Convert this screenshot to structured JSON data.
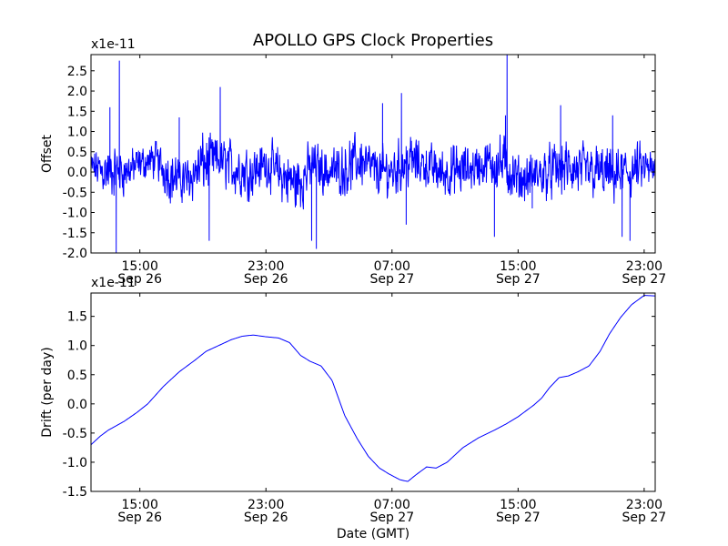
{
  "chart_data": {
    "type": "line",
    "title": "APOLLO GPS Clock Properties",
    "line_color": "#0000ff",
    "x_ticks": [
      {
        "hour": 15,
        "time": "15:00",
        "date": "Sep 26"
      },
      {
        "hour": 23,
        "time": "23:00",
        "date": "Sep 26"
      },
      {
        "hour": 31,
        "time": "07:00",
        "date": "Sep 27"
      },
      {
        "hour": 39,
        "time": "15:00",
        "date": "Sep 27"
      },
      {
        "hour": 47,
        "time": "23:00",
        "date": "Sep 27"
      }
    ],
    "xlim_hours": [
      11.9,
      47.7
    ],
    "panels": [
      {
        "name": "offset",
        "ylabel": "Offset",
        "scale_label": "x1e-11",
        "ylim": [
          -2.0,
          2.9
        ],
        "yticks": [
          -2.0,
          -1.5,
          -1.0,
          -0.5,
          0.0,
          0.5,
          1.0,
          1.5,
          2.0,
          2.5
        ],
        "ytick_labels": [
          "-2.0",
          "-1.5",
          "-1.0",
          "-0.5",
          "0.0",
          "0.5",
          "1.0",
          "1.5",
          "2.0",
          "2.5"
        ],
        "xlabel": "",
        "series": {
          "name": "offset",
          "envelope_hours": [
            12,
            13,
            14,
            15,
            16,
            17,
            18,
            19,
            20,
            21,
            22,
            23,
            24,
            25,
            26,
            27,
            28,
            29,
            30,
            31,
            32,
            33,
            34,
            35,
            36,
            37,
            38,
            39,
            40,
            41,
            42,
            43,
            44,
            45,
            46,
            47,
            47.7
          ],
          "envelope_center": [
            0.1,
            0.0,
            0.0,
            0.2,
            0.3,
            -0.1,
            -0.2,
            0.2,
            0.3,
            0.1,
            0.0,
            0.2,
            -0.1,
            -0.3,
            0.2,
            0.0,
            0.1,
            0.3,
            0.0,
            0.0,
            0.3,
            0.2,
            0.0,
            0.0,
            0.1,
            0.2,
            0.2,
            -0.2,
            -0.1,
            0.0,
            0.1,
            0.0,
            0.0,
            -0.1,
            0.0,
            0.1,
            0.0
          ],
          "envelope_amplitude": [
            0.4,
            0.6,
            0.5,
            0.4,
            0.4,
            0.6,
            0.5,
            0.7,
            0.5,
            0.6,
            0.6,
            0.5,
            0.6,
            0.7,
            0.5,
            0.5,
            0.6,
            0.6,
            0.5,
            0.6,
            0.6,
            0.5,
            0.5,
            0.6,
            0.5,
            0.5,
            0.7,
            0.5,
            0.5,
            0.6,
            0.6,
            0.6,
            0.6,
            0.6,
            0.6,
            0.5,
            0.4
          ],
          "spikes": [
            {
              "hour": 13.1,
              "value": 1.6
            },
            {
              "hour": 13.7,
              "value": 2.75
            },
            {
              "hour": 13.5,
              "value": -2.0
            },
            {
              "hour": 17.5,
              "value": 1.35
            },
            {
              "hour": 19.4,
              "value": -1.7
            },
            {
              "hour": 20.1,
              "value": 2.1
            },
            {
              "hour": 26.2,
              "value": -1.9
            },
            {
              "hour": 25.9,
              "value": -1.7
            },
            {
              "hour": 30.4,
              "value": 1.7
            },
            {
              "hour": 31.6,
              "value": 1.95
            },
            {
              "hour": 31.9,
              "value": -1.3
            },
            {
              "hour": 37.5,
              "value": -1.6
            },
            {
              "hour": 38.3,
              "value": 2.9
            },
            {
              "hour": 38.2,
              "value": 1.4
            },
            {
              "hour": 39.9,
              "value": -0.9
            },
            {
              "hour": 41.7,
              "value": 1.65
            },
            {
              "hour": 45.0,
              "value": 1.4
            },
            {
              "hour": 46.1,
              "value": -1.7
            },
            {
              "hour": 45.6,
              "value": -1.6
            }
          ]
        }
      },
      {
        "name": "drift",
        "ylabel": "Drift (per day)",
        "scale_label": "x1e-11",
        "ylim": [
          -1.5,
          1.9
        ],
        "yticks": [
          -1.5,
          -1.0,
          -0.5,
          0.0,
          0.5,
          1.0,
          1.5
        ],
        "ytick_labels": [
          "-1.5",
          "-1.0",
          "-0.5",
          "0.0",
          "0.5",
          "1.0",
          "1.5"
        ],
        "xlabel": "Date (GMT)",
        "series": {
          "name": "drift",
          "x_hours": [
            11.9,
            12.5,
            13.0,
            14.0,
            14.8,
            15.5,
            16.5,
            17.5,
            18.5,
            19.2,
            20.0,
            20.8,
            21.5,
            22.2,
            23.0,
            23.8,
            24.5,
            25.2,
            25.8,
            26.5,
            27.2,
            28.0,
            28.8,
            29.5,
            30.2,
            30.8,
            31.5,
            32.0,
            32.5,
            33.2,
            33.8,
            34.5,
            35.5,
            36.5,
            37.5,
            38.2,
            39.0,
            39.5,
            40.0,
            40.5,
            41.0,
            41.6,
            42.2,
            42.8,
            43.5,
            44.2,
            44.8,
            45.5,
            46.2,
            47.0,
            47.7
          ],
          "values": [
            -0.7,
            -0.55,
            -0.45,
            -0.3,
            -0.15,
            0.0,
            0.3,
            0.55,
            0.75,
            0.9,
            1.0,
            1.1,
            1.16,
            1.18,
            1.15,
            1.13,
            1.05,
            0.83,
            0.73,
            0.65,
            0.4,
            -0.2,
            -0.6,
            -0.9,
            -1.1,
            -1.2,
            -1.3,
            -1.33,
            -1.22,
            -1.08,
            -1.1,
            -1.0,
            -0.75,
            -0.58,
            -0.45,
            -0.35,
            -0.22,
            -0.12,
            -0.02,
            0.1,
            0.28,
            0.45,
            0.48,
            0.55,
            0.65,
            0.9,
            1.2,
            1.48,
            1.7,
            1.86,
            1.85
          ]
        }
      }
    ]
  }
}
